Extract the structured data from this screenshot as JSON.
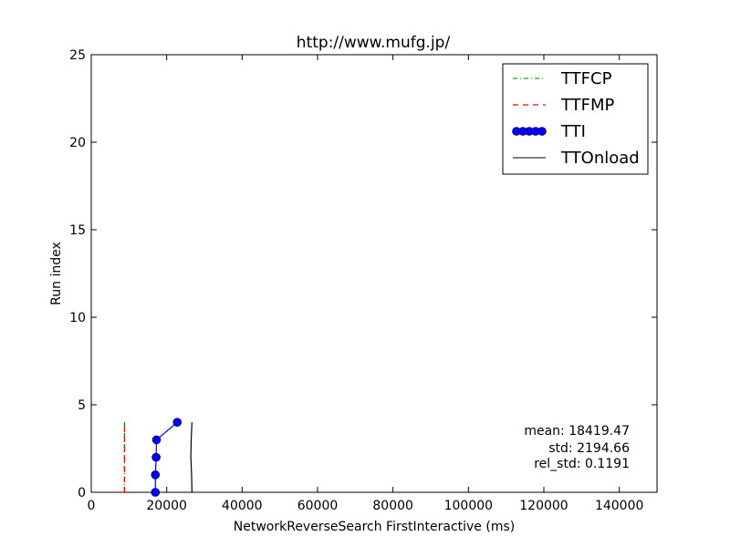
{
  "chart_data": {
    "type": "line",
    "title": "http://www.mufg.jp/",
    "xlabel": "NetworkReverseSearch FirstInteractive (ms)",
    "ylabel": "Run index",
    "xlim": [
      0,
      150000
    ],
    "ylim": [
      0,
      25
    ],
    "xticks": [
      0,
      20000,
      40000,
      60000,
      80000,
      100000,
      120000,
      140000
    ],
    "yticks": [
      0,
      5,
      10,
      15,
      20,
      25
    ],
    "grid": false,
    "legend_position": "top-right",
    "series": [
      {
        "name": "TTFCP",
        "color": "#008000",
        "style": "dash-dot",
        "x": [
          8800,
          8800,
          8800,
          8800,
          8800
        ],
        "y": [
          0,
          1,
          2,
          3,
          4
        ]
      },
      {
        "name": "TTFMP",
        "color": "#ff0000",
        "style": "dashed",
        "x": [
          8800,
          8800,
          8800,
          8800,
          8800
        ],
        "y": [
          0,
          1,
          2,
          3,
          4
        ]
      },
      {
        "name": "TTI",
        "color": "#0000ff",
        "style": "line-marker",
        "x": [
          17000,
          17000,
          17200,
          17300,
          22800
        ],
        "y": [
          0,
          1,
          2,
          3,
          4
        ]
      },
      {
        "name": "TTOnload",
        "color": "#000000",
        "style": "solid",
        "x": [
          26700,
          26600,
          26400,
          26500,
          26700
        ],
        "y": [
          0,
          1,
          2,
          3,
          4
        ]
      }
    ],
    "annotations": {
      "mean": "mean: 18419.47",
      "std": "std: 2194.66",
      "rel_std": "rel_std: 0.1191"
    }
  }
}
